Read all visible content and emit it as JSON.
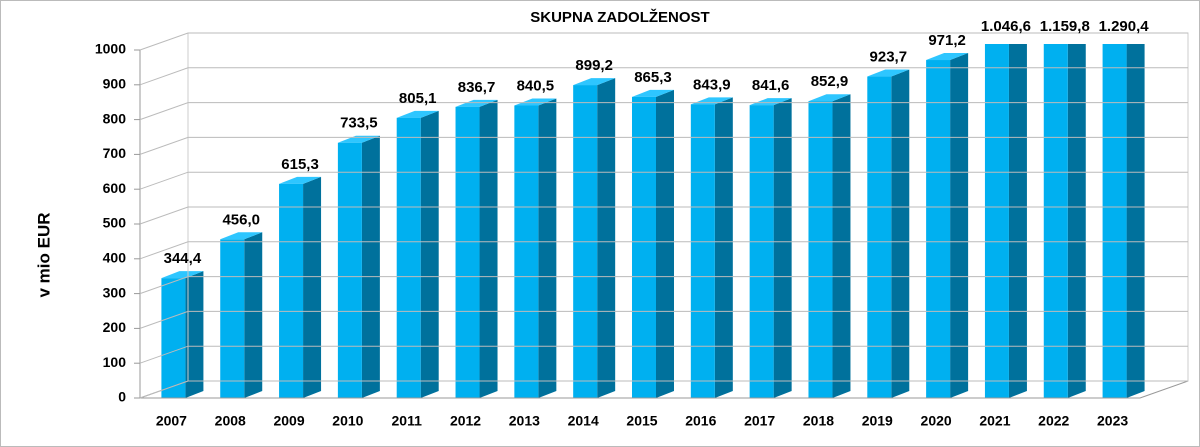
{
  "chart_data": {
    "type": "bar3d",
    "title": "SKUPNA ZADOLŽENOST",
    "y_label": "v mio EUR",
    "categories": [
      "2007",
      "2008",
      "2009",
      "2010",
      "2011",
      "2012",
      "2013",
      "2014",
      "2015",
      "2016",
      "2017",
      "2018",
      "2019",
      "2020",
      "2021",
      "2022",
      "2023"
    ],
    "values": [
      344.4,
      456.0,
      615.3,
      733.5,
      805.1,
      836.7,
      840.5,
      899.2,
      865.3,
      843.9,
      841.6,
      852.9,
      923.7,
      971.2,
      1046.6,
      1159.8,
      1290.4
    ],
    "value_labels": [
      "344,4",
      "456,0",
      "615,3",
      "733,5",
      "805,1",
      "836,7",
      "840,5",
      "899,2",
      "865,3",
      "843,9",
      "841,6",
      "852,9",
      "923,7",
      "971,2",
      "1.046,6",
      "1.159,8",
      "1.290,4"
    ],
    "color": "#00b0f0",
    "ylim": [
      0,
      1000
    ],
    "yticks": [
      0,
      100,
      200,
      300,
      400,
      500,
      600,
      700,
      800,
      900,
      1000
    ],
    "grid": true
  }
}
